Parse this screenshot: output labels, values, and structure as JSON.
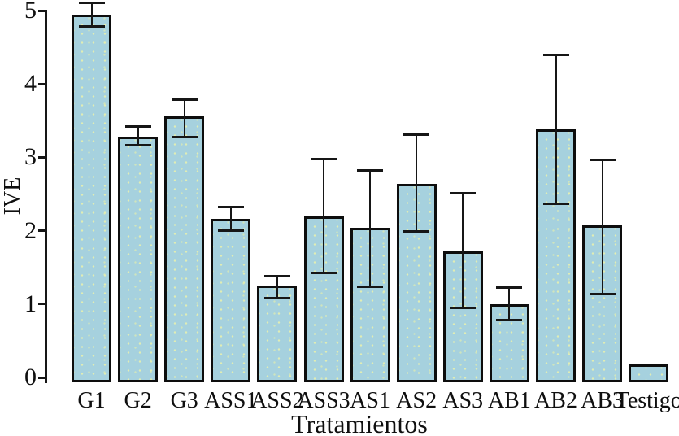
{
  "chart_data": {
    "type": "bar",
    "title": "",
    "xlabel": "Tratamientos",
    "ylabel": "IVE",
    "ylim": [
      0,
      5
    ],
    "yticks": [
      0,
      1,
      2,
      3,
      4,
      5
    ],
    "grid": false,
    "legend": null,
    "bar_fill_color": "#a6d1de",
    "bar_border_color": "#0d0d0d",
    "error_bar_color": "#161616",
    "background_color": "#ffffff",
    "categories": [
      "G1",
      "G2",
      "G3",
      "ASS1",
      "ASS2",
      "ASS3",
      "AS1",
      "AS2",
      "AS3",
      "AB1",
      "AB2",
      "AB3",
      "Testigo"
    ],
    "values": [
      4.95,
      3.28,
      3.56,
      2.16,
      1.25,
      2.2,
      2.04,
      2.64,
      1.72,
      1.0,
      3.38,
      2.07,
      0.18
    ],
    "error_low": [
      4.78,
      3.16,
      3.28,
      2.0,
      1.08,
      1.42,
      1.24,
      1.99,
      0.95,
      0.78,
      2.37,
      1.14,
      null
    ],
    "error_high": [
      5.1,
      3.42,
      3.79,
      2.32,
      1.38,
      2.98,
      2.82,
      3.31,
      2.51,
      1.22,
      4.4,
      2.97,
      null
    ]
  }
}
